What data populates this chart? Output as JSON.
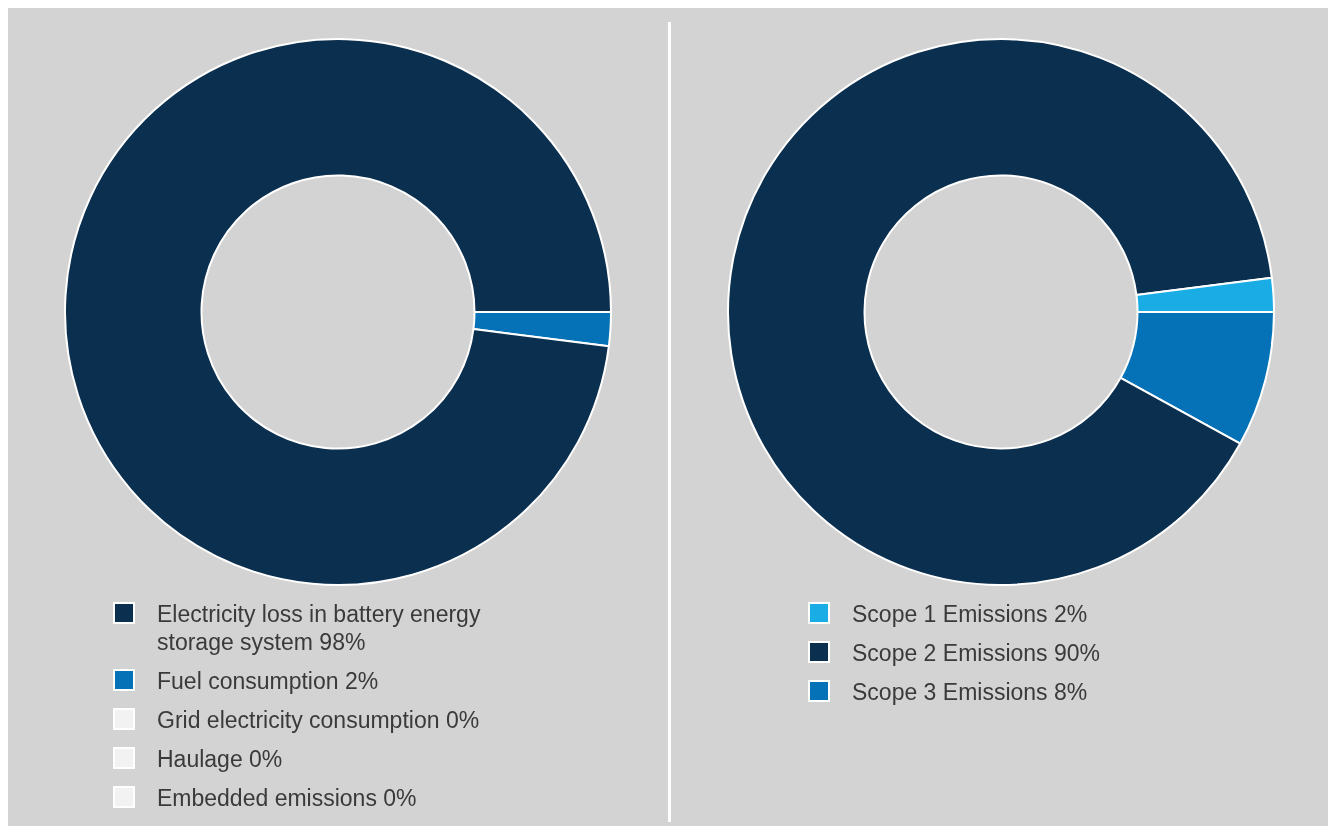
{
  "chart_data": [
    {
      "type": "donut",
      "categories": [
        "Electricity loss in battery energy storage system 98%",
        "Fuel consumption 2%",
        "Grid electricity consumption 0%",
        "Haulage 0%",
        "Embedded emissions 0%"
      ],
      "values": [
        98,
        2,
        0,
        0,
        0
      ],
      "colors": [
        "#0b2f4f",
        "#0572b8",
        "#f2f2f2",
        "#f2f2f2",
        "#f2f2f2"
      ],
      "legend": "bottom"
    },
    {
      "type": "donut",
      "categories": [
        "Scope 1 Emissions 2%",
        "Scope 2 Emissions 90%",
        "Scope 3 Emissions 8%"
      ],
      "values": [
        2,
        90,
        8
      ],
      "colors": [
        "#1aace5",
        "#0b2f4f",
        "#0572b8"
      ],
      "legend": "bottom"
    }
  ]
}
